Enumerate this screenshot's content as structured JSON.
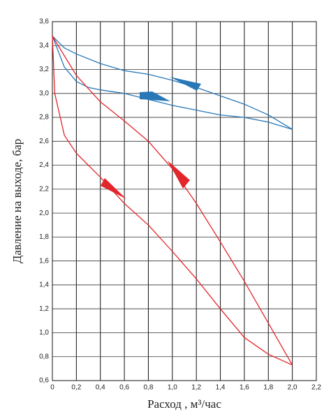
{
  "chart_data": {
    "type": "line",
    "xlabel": "Расход , м³/час",
    "ylabel": "Давление на выходе, бар",
    "xlim": [
      0,
      2.2
    ],
    "ylim": [
      0.6,
      3.6
    ],
    "xticks": [
      0,
      {
        "value": 0.2,
        "label": "0,2"
      },
      {
        "value": 0.4,
        "label": "0,4"
      },
      {
        "value": 0.6,
        "label": "0,6"
      },
      {
        "value": 0.8,
        "label": "0,8"
      },
      {
        "value": 1.0,
        "label": "1,0"
      },
      {
        "value": 1.2,
        "label": "1,2"
      },
      {
        "value": 1.4,
        "label": "1,4"
      },
      {
        "value": 1.6,
        "label": "1,6"
      },
      {
        "value": 1.8,
        "label": "1,8"
      },
      {
        "value": 2.0,
        "label": "2,0"
      },
      {
        "value": 2.2,
        "label": "2,2"
      }
    ],
    "yticks": [
      {
        "value": 0.6,
        "label": "0,6"
      },
      {
        "value": 0.8,
        "label": "0,8"
      },
      {
        "value": 1.0,
        "label": "1,0"
      },
      {
        "value": 1.2,
        "label": "1,2"
      },
      {
        "value": 1.4,
        "label": "1,4"
      },
      {
        "value": 1.6,
        "label": "1,6"
      },
      {
        "value": 1.8,
        "label": "1,8"
      },
      {
        "value": 2.0,
        "label": "2,0"
      },
      {
        "value": 2.2,
        "label": "2,2"
      },
      {
        "value": 2.4,
        "label": "2,4"
      },
      {
        "value": 2.6,
        "label": "2,6"
      },
      {
        "value": 2.8,
        "label": "2,8"
      },
      {
        "value": 3.0,
        "label": "3,0"
      },
      {
        "value": 3.2,
        "label": "3,2"
      },
      {
        "value": 3.4,
        "label": "3,4"
      },
      {
        "value": 3.6,
        "label": "3,6"
      }
    ],
    "grid": true,
    "series": [
      {
        "color": "#2878b8",
        "x": [
          0,
          0.1,
          0.2,
          0.4,
          0.6,
          0.8,
          1.0,
          1.2,
          1.4,
          1.6,
          1.8,
          2.0
        ],
        "values": [
          3.48,
          3.38,
          3.33,
          3.25,
          3.19,
          3.16,
          3.11,
          3.05,
          2.98,
          2.91,
          2.82,
          2.7
        ]
      },
      {
        "color": "#2878b8",
        "x": [
          0,
          0.05,
          0.1,
          0.2,
          0.3,
          0.4,
          0.6,
          0.8,
          1.0,
          1.2,
          1.4,
          1.6,
          1.8,
          2.0
        ],
        "values": [
          3.48,
          3.35,
          3.22,
          3.1,
          3.05,
          3.03,
          3.0,
          2.95,
          2.9,
          2.86,
          2.82,
          2.8,
          2.76,
          2.7
        ]
      },
      {
        "color": "#e3262b",
        "x": [
          0,
          0.2,
          0.4,
          0.6,
          0.8,
          1.0,
          1.2,
          1.4,
          1.6,
          1.8,
          2.0
        ],
        "values": [
          3.48,
          3.15,
          2.93,
          2.77,
          2.6,
          2.37,
          2.08,
          1.76,
          1.43,
          1.08,
          0.73
        ]
      },
      {
        "color": "#e3262b",
        "x": [
          0,
          0.02,
          0.1,
          0.2,
          0.4,
          0.6,
          0.8,
          1.0,
          1.2,
          1.4,
          1.6,
          1.8,
          2.0
        ],
        "values": [
          3.48,
          3.0,
          2.65,
          2.5,
          2.3,
          2.08,
          1.9,
          1.68,
          1.45,
          1.2,
          0.96,
          0.82,
          0.73
        ]
      }
    ]
  }
}
